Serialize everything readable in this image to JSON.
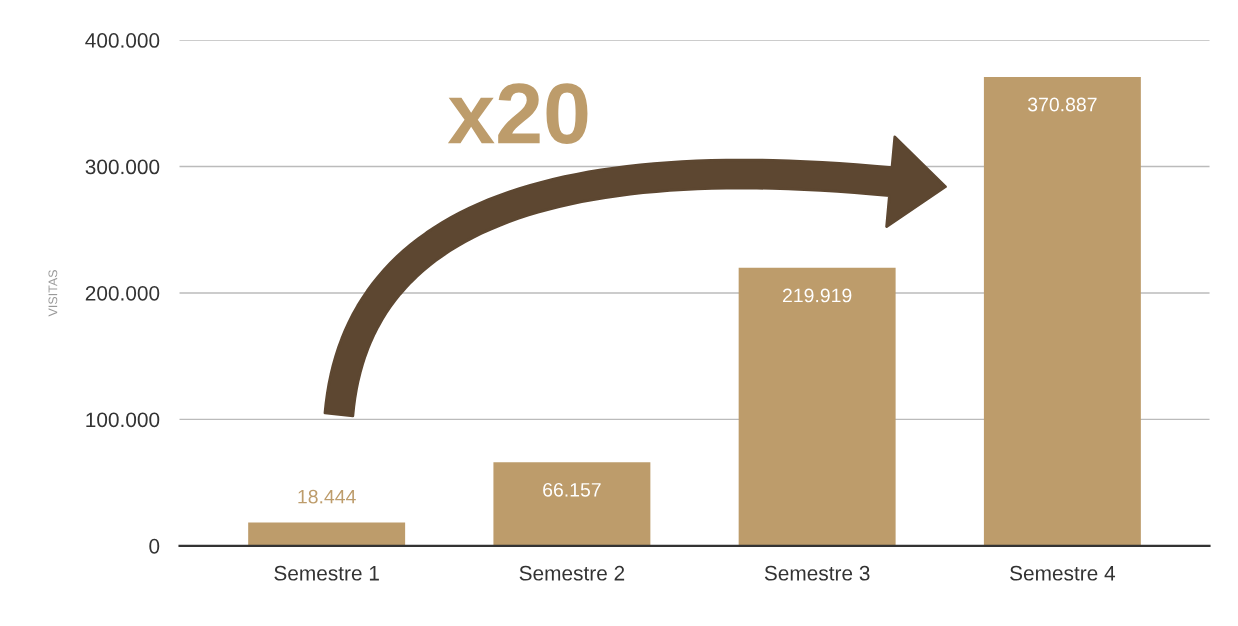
{
  "chart_data": {
    "type": "bar",
    "categories": [
      "Semestre 1",
      "Semestre 2",
      "Semestre 3",
      "Semestre 4"
    ],
    "values": [
      18444,
      66157,
      219919,
      370887
    ],
    "value_labels": [
      "18.444",
      "66.157",
      "219.919",
      "370.887"
    ],
    "color": "#bd9c6b",
    "ylabel": "VISITAS",
    "ylim": [
      0,
      400000
    ],
    "yticks": [
      0,
      {
        "value": 100000,
        "label": "100.000"
      },
      {
        "value": 200000,
        "label": "200.000"
      },
      {
        "value": 300000,
        "label": "300.000"
      },
      {
        "value": 400000,
        "label": "400.000"
      }
    ],
    "grid": "y",
    "annotations": [
      "x20"
    ]
  }
}
